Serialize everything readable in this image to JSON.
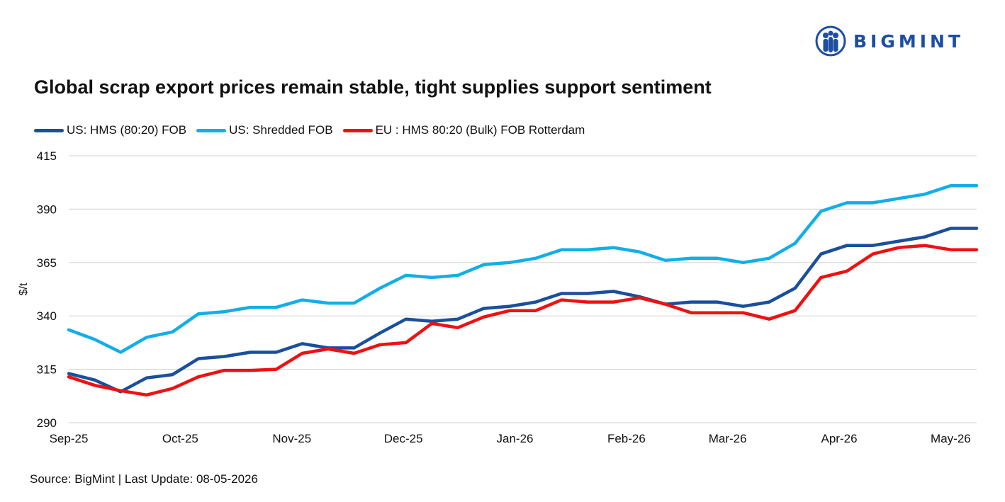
{
  "logo": {
    "text": "BIGMINT",
    "icon": "people-circle-icon",
    "color": "#1d4ea3"
  },
  "title": "Global scrap export prices remain stable, tight supplies support sentiment",
  "source": "Source: BigMint | Last Update: 08-05-2026",
  "chart_data": {
    "type": "line",
    "title": "Global scrap export prices remain stable, tight supplies support sentiment",
    "xlabel": "",
    "ylabel": "$/t",
    "ylim": [
      290,
      415
    ],
    "yticks": [
      290,
      315,
      340,
      365,
      390,
      415
    ],
    "xtick_labels": [
      "Sep-25",
      "Oct-25",
      "Nov-25",
      "Dec-25",
      "Jan-26",
      "Feb-26",
      "Mar-26",
      "Apr-26",
      "May-26"
    ],
    "xtick_positions": [
      0,
      4.3,
      8.6,
      12.9,
      17.2,
      21.5,
      25.4,
      29.7,
      34
    ],
    "grid": "horizontal",
    "legend_position": "top-left",
    "series": [
      {
        "name": "US: HMS (80:20) FOB",
        "color": "#1a4f9c",
        "values": [
          313,
          310,
          304.5,
          311,
          312.5,
          320,
          321,
          323,
          323,
          327,
          325,
          325,
          332,
          338.5,
          337.5,
          338.5,
          343.5,
          344.5,
          346.5,
          350.5,
          350.5,
          351.5,
          349,
          345.5,
          346.5,
          346.5,
          344.5,
          346.5,
          353,
          369,
          373,
          373,
          375,
          377,
          381,
          381
        ]
      },
      {
        "name": "US: Shredded FOB",
        "color": "#12aee8",
        "values": [
          333.5,
          329,
          323,
          330,
          332.5,
          341,
          342,
          344,
          344,
          347.5,
          346,
          346,
          353,
          359,
          358,
          359,
          364,
          365,
          367,
          371,
          371,
          372,
          370,
          366,
          367,
          367,
          365,
          367,
          374,
          389,
          393,
          393,
          395,
          397,
          401,
          401
        ]
      },
      {
        "name": "EU : HMS 80:20 (Bulk) FOB Rotterdam",
        "color": "#ee1111",
        "values": [
          311.5,
          307.5,
          305,
          303,
          306,
          311.5,
          314.5,
          314.5,
          315,
          322.5,
          324.5,
          322.5,
          326.5,
          327.5,
          336.5,
          334.5,
          339.5,
          342.5,
          342.5,
          347.5,
          346.5,
          346.5,
          348.5,
          345.5,
          341.5,
          341.5,
          341.5,
          338.5,
          342.5,
          358,
          361,
          369,
          372,
          373,
          371,
          371
        ]
      }
    ]
  }
}
